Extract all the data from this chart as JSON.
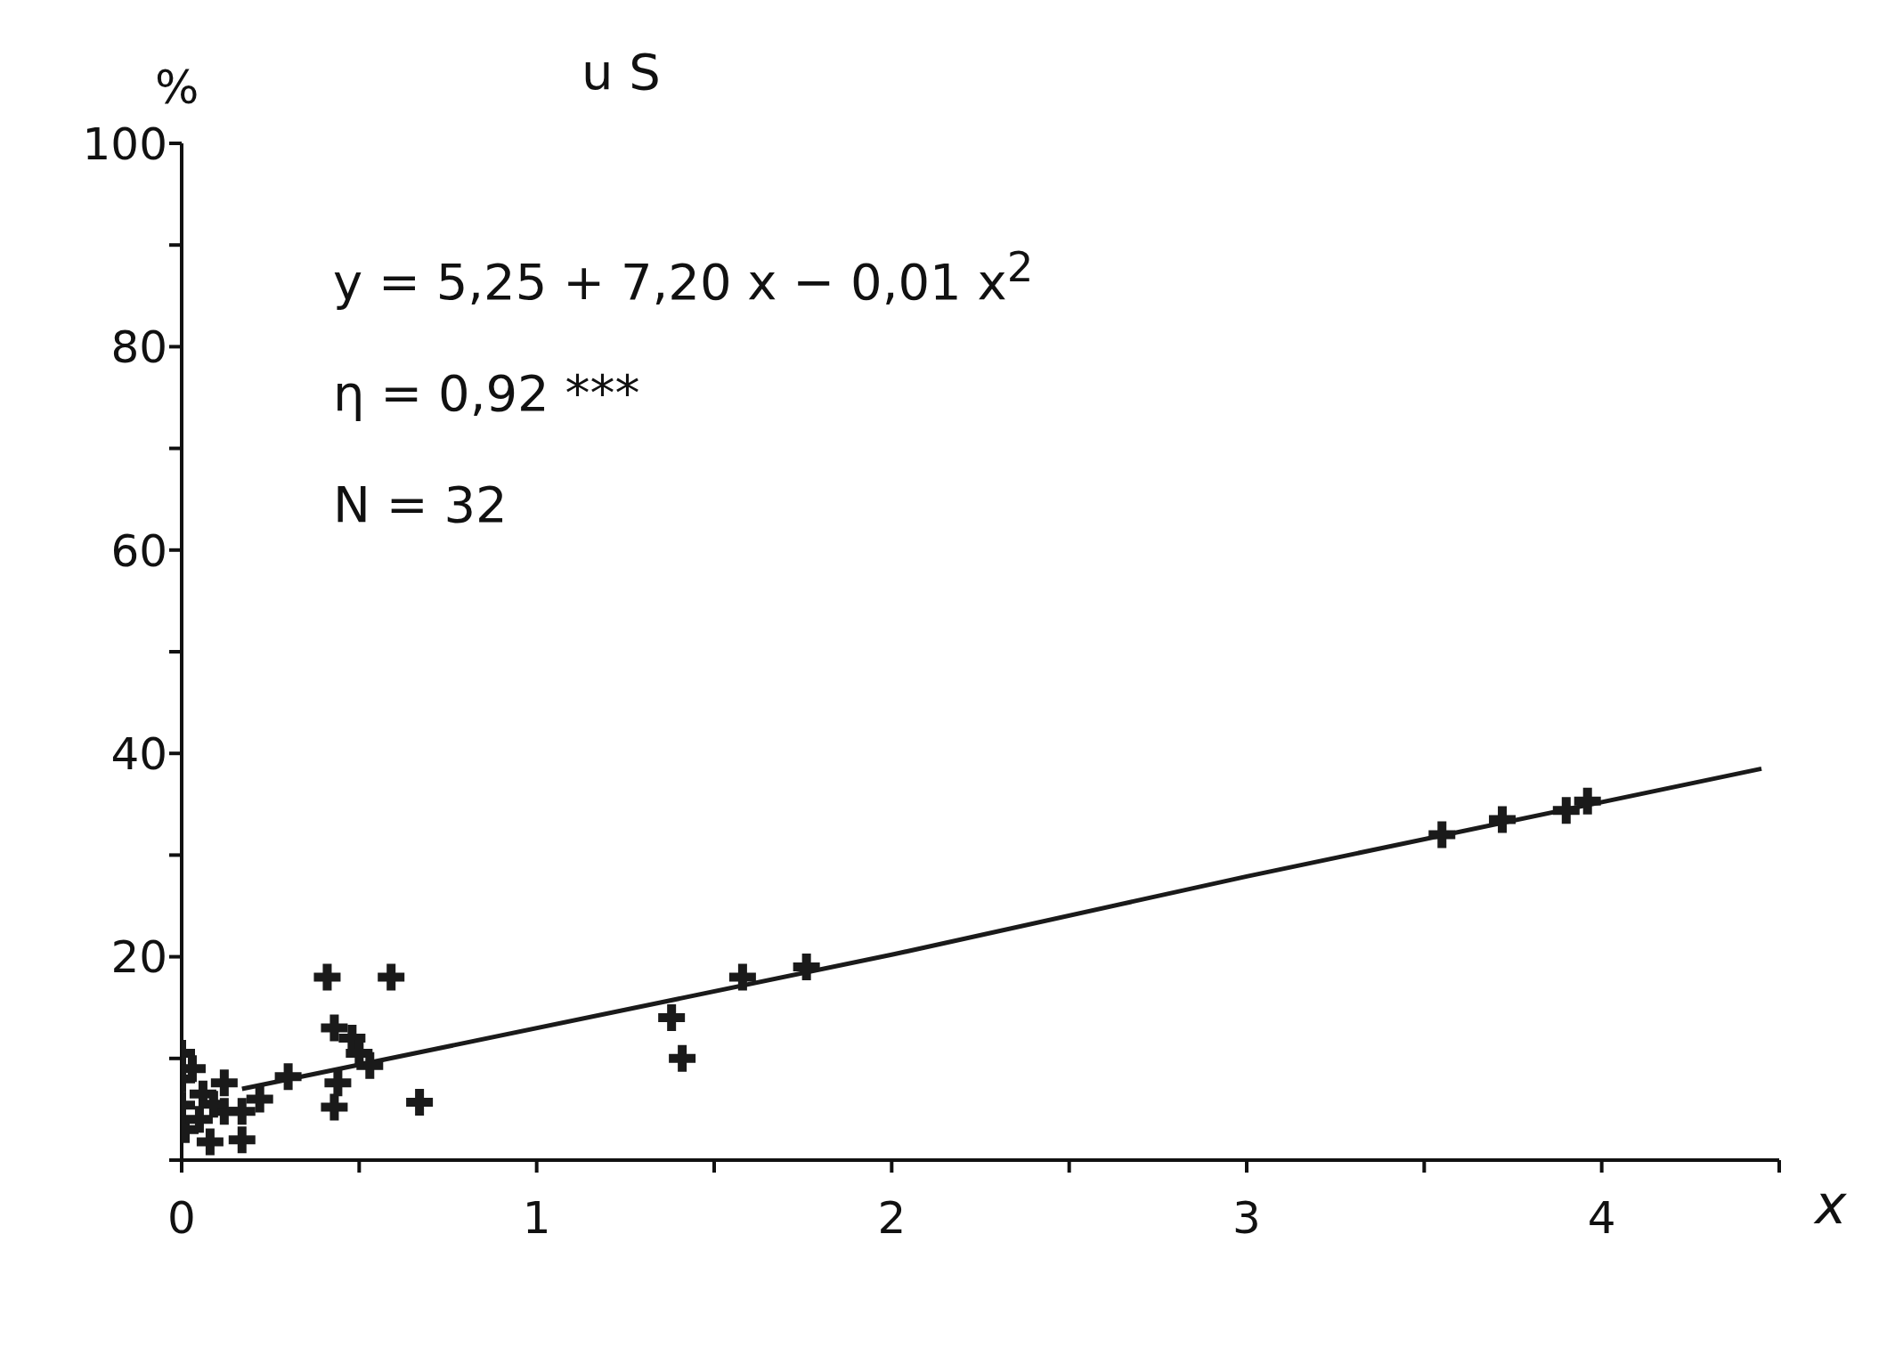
{
  "chart_data": {
    "type": "scatter",
    "title": "u S",
    "ylabel": "%",
    "xlabel": "x",
    "xlim": [
      0,
      4.5
    ],
    "ylim": [
      0,
      100
    ],
    "xticks": [
      0,
      {
        "value": 0.5,
        "label": null
      },
      1,
      {
        "value": 1.5,
        "label": null
      },
      2,
      {
        "value": 2.5,
        "label": null
      },
      3,
      {
        "value": 3.5,
        "label": null
      },
      4,
      {
        "value": 4.5,
        "label": null
      }
    ],
    "yticks": [
      {
        "value": 0,
        "label": null
      },
      {
        "value": 10,
        "label": null
      },
      20,
      {
        "value": 30,
        "label": null
      },
      40,
      {
        "value": 50,
        "label": null
      },
      60,
      {
        "value": 70,
        "label": null
      },
      80,
      {
        "value": 90,
        "label": null
      },
      100
    ],
    "marker": "cross",
    "annotations": [
      "y = 5,25 + 7,20 x − 0,01 x$^{2}$",
      "η = 0,92 ***",
      "N = 32"
    ],
    "series": [
      {
        "type": "scatter",
        "color": "#1a1a1a",
        "x": [
          0,
          0,
          0,
          0.01,
          0.03,
          0.06,
          0.12,
          0.12,
          0.17,
          0.17,
          0.22,
          0.09,
          0.41,
          0.59,
          0.43,
          0.48,
          0.43,
          0.44,
          0.67,
          0.53,
          0.5,
          1.38,
          1.41,
          1.58,
          1.76,
          3.55,
          3.72,
          3.9,
          3.96,
          0.05,
          0.08,
          0.3
        ],
        "values": [
          10.5,
          8,
          5.4,
          3,
          9,
          6.5,
          7.6,
          4.8,
          4.8,
          2,
          6,
          5.5,
          18,
          18,
          13,
          12,
          5.2,
          7.6,
          5.7,
          9.3,
          10.5,
          14,
          10,
          18,
          19,
          32,
          33.5,
          34.4,
          35.3,
          4,
          1.8,
          8.2
        ]
      },
      {
        "type": "line",
        "color": "#1a1a1a",
        "marker": "none",
        "x": [
          0.17,
          2,
          3,
          4.45
        ],
        "values": [
          7,
          20.2,
          27.9,
          38.5
        ]
      }
    ]
  }
}
